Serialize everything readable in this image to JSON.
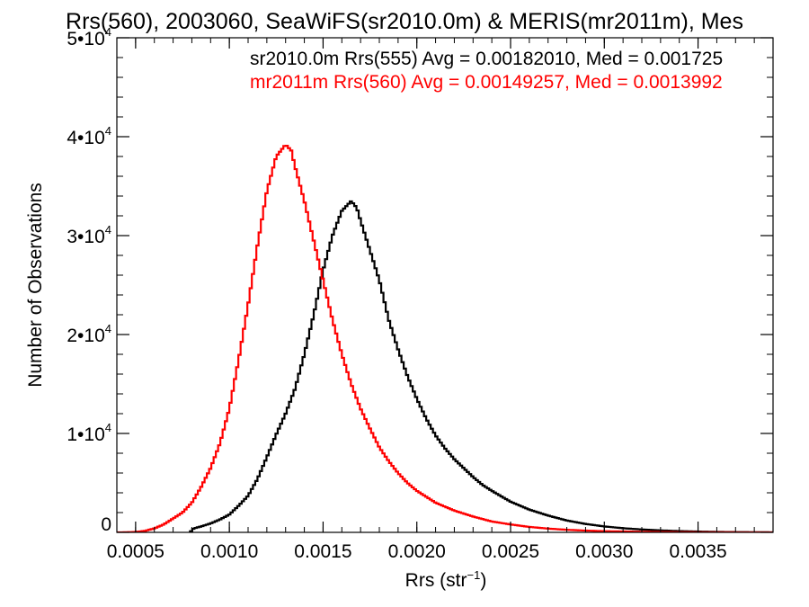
{
  "chart_data": {
    "type": "line",
    "title": "Rrs(560), 2003060, SeaWiFS(sr2010.0m) & MERIS(mr2011m), Mes",
    "xlabel": "Rrs (str",
    "xlabel_sup": "−1",
    "xlabel_suffix": ")",
    "ylabel": "Number of Observations",
    "xlim": [
      0.0004,
      0.0039
    ],
    "ylim": [
      0,
      50000
    ],
    "x_ticks": [
      {
        "value": 0.0005,
        "label": "0.0005"
      },
      {
        "value": 0.001,
        "label": "0.0010"
      },
      {
        "value": 0.0015,
        "label": "0.0015"
      },
      {
        "value": 0.002,
        "label": "0.0020"
      },
      {
        "value": 0.0025,
        "label": "0.0025"
      },
      {
        "value": 0.003,
        "label": "0.0030"
      },
      {
        "value": 0.0035,
        "label": "0.0035"
      }
    ],
    "y_ticks": [
      {
        "value": 0,
        "base": "0",
        "exp": ""
      },
      {
        "value": 10000,
        "base": "1•10",
        "exp": "4"
      },
      {
        "value": 20000,
        "base": "2•10",
        "exp": "4"
      },
      {
        "value": 30000,
        "base": "3•10",
        "exp": "4"
      },
      {
        "value": 40000,
        "base": "4•10",
        "exp": "4"
      },
      {
        "value": 50000,
        "base": "5•10",
        "exp": "4"
      }
    ],
    "grid": false,
    "series": [
      {
        "name": "sr2010.0m Rrs(555)",
        "legend_text": "sr2010.0m Rrs(555) Avg = 0.00182010, Med = 0.001725",
        "color": "#000000",
        "points": [
          [
            0.00079,
            0
          ],
          [
            0.00081,
            400
          ],
          [
            0.00085,
            600
          ],
          [
            0.0009,
            900
          ],
          [
            0.00095,
            1300
          ],
          [
            0.001,
            1800
          ],
          [
            0.00105,
            2700
          ],
          [
            0.0011,
            3700
          ],
          [
            0.00115,
            5400
          ],
          [
            0.0012,
            7600
          ],
          [
            0.00125,
            9900
          ],
          [
            0.0013,
            12000
          ],
          [
            0.00135,
            14500
          ],
          [
            0.0014,
            18000
          ],
          [
            0.00145,
            22000
          ],
          [
            0.0015,
            26500
          ],
          [
            0.00155,
            30000
          ],
          [
            0.0016,
            32500
          ],
          [
            0.00165,
            33500
          ],
          [
            0.00168,
            32800
          ],
          [
            0.0017,
            31500
          ],
          [
            0.00175,
            28500
          ],
          [
            0.0018,
            25500
          ],
          [
            0.00185,
            21500
          ],
          [
            0.0019,
            18500
          ],
          [
            0.00195,
            15800
          ],
          [
            0.002,
            13500
          ],
          [
            0.00205,
            11500
          ],
          [
            0.0021,
            9800
          ],
          [
            0.00215,
            8500
          ],
          [
            0.0022,
            7400
          ],
          [
            0.00225,
            6500
          ],
          [
            0.0023,
            5600
          ],
          [
            0.00235,
            4800
          ],
          [
            0.0024,
            4200
          ],
          [
            0.0025,
            3100
          ],
          [
            0.0026,
            2300
          ],
          [
            0.0027,
            1700
          ],
          [
            0.0028,
            1200
          ],
          [
            0.0029,
            850
          ],
          [
            0.003,
            600
          ],
          [
            0.0031,
            420
          ],
          [
            0.0032,
            290
          ],
          [
            0.0033,
            200
          ],
          [
            0.0034,
            130
          ],
          [
            0.0035,
            80
          ],
          [
            0.0036,
            50
          ],
          [
            0.0037,
            30
          ],
          [
            0.0038,
            15
          ],
          [
            0.0039,
            5
          ]
        ]
      },
      {
        "name": "mr2011m Rrs(560)",
        "legend_text": "mr2011m Rrs(560) Avg = 0.00149257, Med = 0.0013992",
        "color": "#ff0000",
        "points": [
          [
            0.0004,
            0
          ],
          [
            0.00045,
            10
          ],
          [
            0.0005,
            40
          ],
          [
            0.00055,
            150
          ],
          [
            0.0006,
            400
          ],
          [
            0.00065,
            800
          ],
          [
            0.0007,
            1400
          ],
          [
            0.00075,
            2000
          ],
          [
            0.0008,
            3000
          ],
          [
            0.00085,
            4600
          ],
          [
            0.0009,
            6500
          ],
          [
            0.00095,
            9000
          ],
          [
            0.001,
            12500
          ],
          [
            0.00105,
            17500
          ],
          [
            0.0011,
            23000
          ],
          [
            0.00115,
            29000
          ],
          [
            0.0012,
            34500
          ],
          [
            0.00125,
            38000
          ],
          [
            0.0013,
            39200
          ],
          [
            0.00133,
            38600
          ],
          [
            0.00135,
            37000
          ],
          [
            0.0014,
            33500
          ],
          [
            0.00145,
            29500
          ],
          [
            0.0015,
            25500
          ],
          [
            0.00155,
            21500
          ],
          [
            0.0016,
            18000
          ],
          [
            0.00165,
            15000
          ],
          [
            0.0017,
            12500
          ],
          [
            0.00175,
            10500
          ],
          [
            0.0018,
            8600
          ],
          [
            0.00185,
            7200
          ],
          [
            0.0019,
            6000
          ],
          [
            0.00195,
            5000
          ],
          [
            0.002,
            4200
          ],
          [
            0.0021,
            3000
          ],
          [
            0.0022,
            2200
          ],
          [
            0.0023,
            1600
          ],
          [
            0.0024,
            1100
          ],
          [
            0.0025,
            800
          ],
          [
            0.0026,
            550
          ],
          [
            0.0027,
            380
          ],
          [
            0.0028,
            260
          ],
          [
            0.0029,
            180
          ],
          [
            0.003,
            120
          ],
          [
            0.0032,
            60
          ],
          [
            0.0034,
            25
          ],
          [
            0.0036,
            10
          ],
          [
            0.0039,
            3
          ]
        ]
      }
    ]
  }
}
